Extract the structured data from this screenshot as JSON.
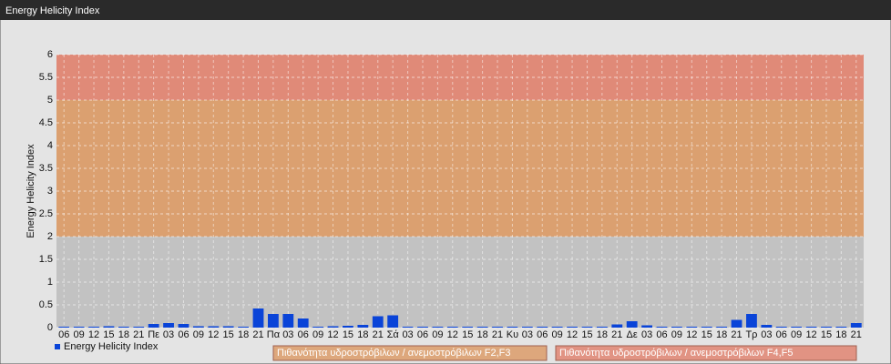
{
  "chart_data": {
    "type": "bar",
    "title": "Energy Helicity Index",
    "y_label": "Energy Helicity Index",
    "categories": [
      "06",
      "09",
      "12",
      "15",
      "18",
      "21",
      "Πε",
      "03",
      "06",
      "09",
      "12",
      "15",
      "18",
      "21",
      "Πα",
      "03",
      "06",
      "09",
      "12",
      "15",
      "18",
      "21",
      "Σά",
      "03",
      "06",
      "09",
      "12",
      "15",
      "18",
      "21",
      "Κυ",
      "03",
      "06",
      "09",
      "12",
      "15",
      "18",
      "21",
      "Δε",
      "03",
      "06",
      "09",
      "12",
      "15",
      "18",
      "21",
      "Τρ",
      "03",
      "06",
      "09",
      "12",
      "15",
      "18",
      "21"
    ],
    "series": [
      {
        "name": "Energy Helicity Index",
        "color": "#0a44d8",
        "values": [
          0.02,
          0.02,
          0.02,
          0.03,
          0.02,
          0.02,
          0.08,
          0.1,
          0.08,
          0.03,
          0.03,
          0.03,
          0.02,
          0.42,
          0.3,
          0.3,
          0.2,
          0.02,
          0.03,
          0.04,
          0.06,
          0.25,
          0.27,
          0.02,
          0.02,
          0.02,
          0.02,
          0.02,
          0.02,
          0.02,
          0.02,
          0.02,
          0.02,
          0.02,
          0.02,
          0.02,
          0.02,
          0.07,
          0.14,
          0.05,
          0.02,
          0.02,
          0.02,
          0.02,
          0.02,
          0.17,
          0.3,
          0.06,
          0.02,
          0.02,
          0.02,
          0.02,
          0.02,
          0.1
        ]
      }
    ],
    "ylim": [
      0,
      6
    ],
    "yticks": [
      0,
      0.5,
      1,
      1.5,
      2,
      2.5,
      3,
      3.5,
      4,
      4.5,
      5,
      5.5,
      6
    ],
    "grid": true,
    "background_color": "#c2c2c2",
    "bands": [
      {
        "from": 2,
        "to": 5,
        "color": "#dba070",
        "label": "Πιθανότητα υδροστρόβιλων / ανεμοστρόβιλων F2,F3"
      },
      {
        "from": 5,
        "to": 6,
        "color": "#e08a78",
        "label": "Πιθανότητα υδροστρόβιλων / ανεμοστρόβιλων F4,F5"
      }
    ]
  }
}
